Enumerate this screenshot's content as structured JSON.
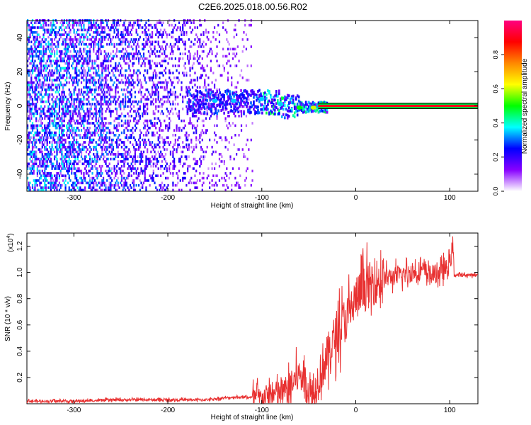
{
  "title": "C2E6.2025.018.00.56.R02",
  "chart_data": [
    {
      "type": "heatmap",
      "xlabel": "Height of straight line (km)",
      "ylabel": "Frequency (Hz)",
      "xlim": [
        -350,
        130
      ],
      "ylim": [
        -50,
        50
      ],
      "xticks": [
        -300,
        -200,
        -100,
        0,
        100
      ],
      "yticks": [
        -40,
        -20,
        0,
        20,
        40
      ],
      "colorbar": {
        "label": "Normalized spectral amplitude",
        "range": [
          0,
          1
        ],
        "ticks": [
          0.0,
          0.2,
          0.4,
          0.6,
          0.8
        ],
        "colors": [
          "#ffffff",
          "#8800ff",
          "#0000ff",
          "#00ffff",
          "#00ff00",
          "#ffff00",
          "#ff8800",
          "#ff0000",
          "#ff0080"
        ]
      },
      "noise_region": {
        "x": [
          -350,
          -110
        ],
        "freq": [
          -50,
          50
        ],
        "amplitude": [
          0.05,
          0.3
        ]
      },
      "signal_line": {
        "x": [
          -40,
          130
        ],
        "freq": 0,
        "amplitude": 0.9
      },
      "bright_points": [
        {
          "x": -150,
          "y": 3,
          "v": 0.35
        },
        {
          "x": -130,
          "y": 3,
          "v": 0.35
        },
        {
          "x": -100,
          "y": 4,
          "v": 0.35
        },
        {
          "x": -80,
          "y": 1,
          "v": 0.35
        },
        {
          "x": -60,
          "y": -1,
          "v": 0.5
        },
        {
          "x": -45,
          "y": -1,
          "v": 0.6
        },
        {
          "x": -30,
          "y": 0,
          "v": 0.75
        },
        {
          "x": -20,
          "y": 0,
          "v": 0.85
        },
        {
          "x": -5,
          "y": 0,
          "v": 0.85
        },
        {
          "x": 55,
          "y": 0,
          "v": 0.85
        },
        {
          "x": 100,
          "y": 0,
          "v": 0.85
        }
      ]
    },
    {
      "type": "line",
      "xlabel": "Height of straight line (km)",
      "ylabel": "SNR (10 * v/v)",
      "y_multiplier": "(x10",
      "y_exponent": "4",
      "y_multiplier_close": ")",
      "xlim": [
        -350,
        130
      ],
      "ylim": [
        0,
        1.3
      ],
      "xticks": [
        -300,
        -200,
        -100,
        0,
        100
      ],
      "yticks": [
        0.2,
        0.4,
        0.6,
        0.8,
        1.0,
        1.2
      ],
      "color": "#e83030",
      "series": [
        {
          "x": [
            -350,
            -300,
            -250,
            -200,
            -160,
            -130,
            -115,
            -100,
            -90,
            -80,
            -70,
            -65,
            -60,
            -55,
            -50,
            -45,
            -40,
            -35,
            -30,
            -25,
            -20,
            -15,
            -10,
            -5,
            0,
            10,
            20,
            30,
            40,
            50,
            60,
            70,
            80,
            90,
            95,
            100,
            103,
            105,
            110,
            120,
            130
          ],
          "y": [
            0.02,
            0.02,
            0.03,
            0.03,
            0.03,
            0.05,
            0.05,
            0.04,
            0.06,
            0.08,
            0.12,
            0.18,
            0.22,
            0.2,
            0.1,
            0.05,
            0.2,
            0.3,
            0.35,
            0.45,
            0.55,
            0.6,
            0.65,
            0.72,
            0.8,
            0.88,
            0.93,
            0.95,
            0.97,
            0.98,
            1.0,
            1.02,
            0.98,
            1.0,
            1.02,
            1.05,
            1.2,
            0.98,
            0.98,
            0.98,
            0.98
          ]
        }
      ]
    }
  ]
}
